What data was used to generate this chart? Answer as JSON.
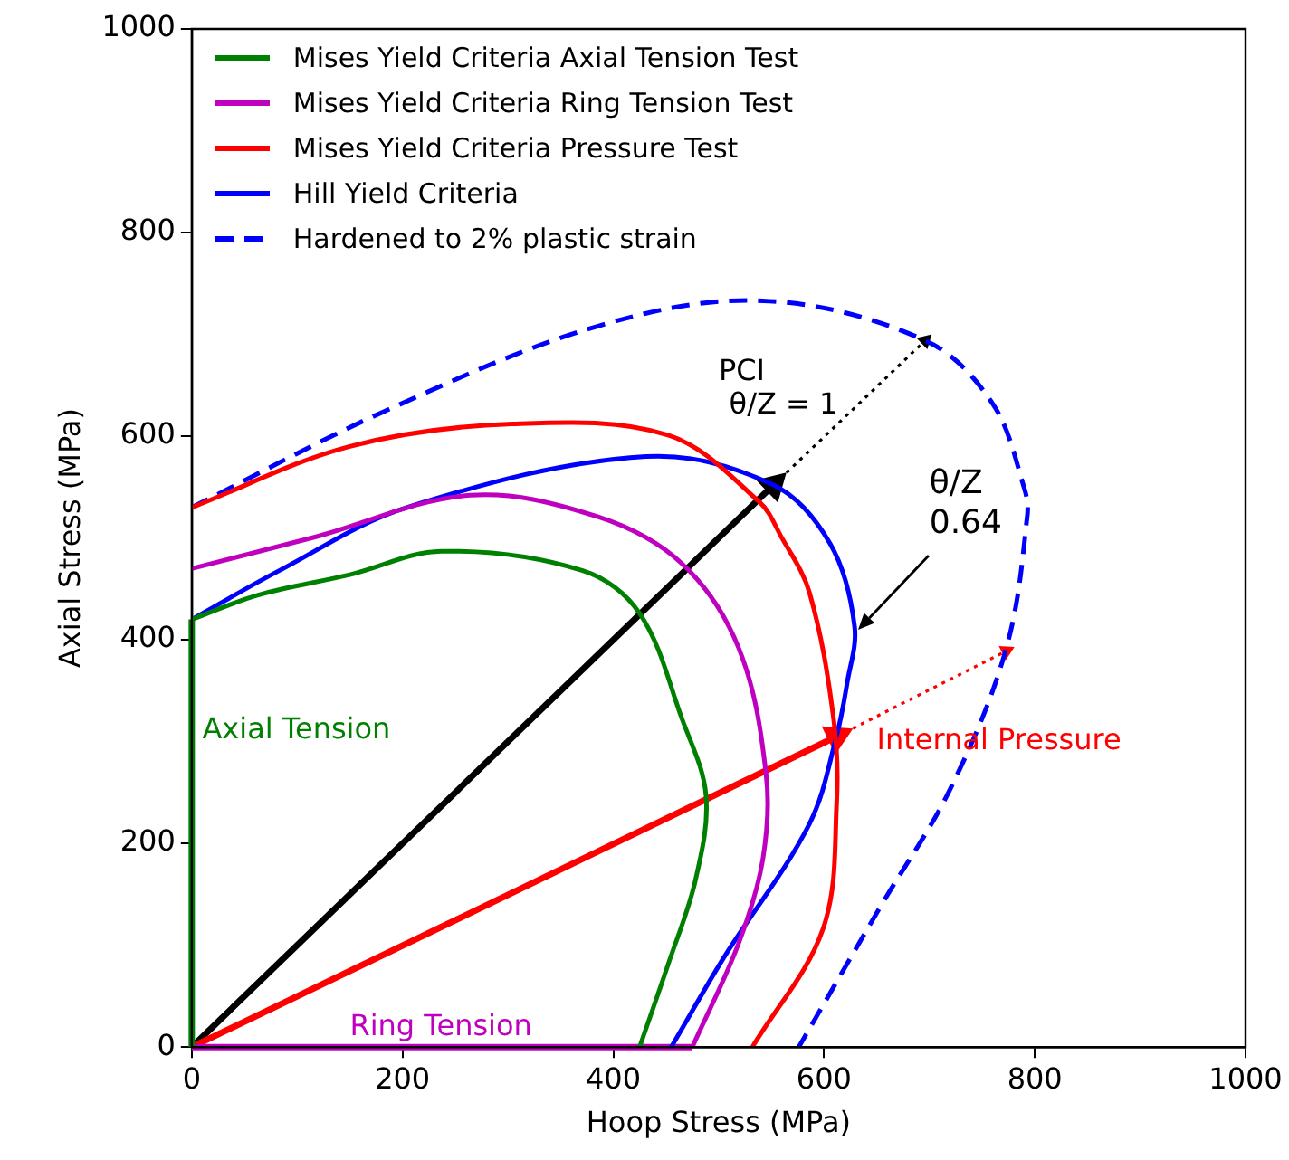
{
  "chart_data": {
    "type": "line",
    "xlabel": "Hoop Stress (MPa)",
    "ylabel": "Axial Stress (MPa)",
    "xlim": [
      0,
      1000
    ],
    "xticks": [
      0,
      200,
      400,
      600,
      800,
      1000
    ],
    "ylim": [
      0,
      1000
    ],
    "yticks": [
      0,
      200,
      400,
      600,
      800,
      1000
    ],
    "grid": false,
    "legend": "top left",
    "marker": "none",
    "line_style": "solid",
    "series": [
      {
        "name": "Mises Yield Criteria Axial Tension Test",
        "color": "#008000",
        "x": [
          0,
          63,
          150,
          237,
          371,
          425,
          465,
          488,
          478,
          452,
          425
        ],
        "values": [
          420,
          444,
          464,
          487,
          468,
          426,
          323,
          247,
          164,
          81,
          0
        ]
      },
      {
        "name": "Mises Yield Criteria Ring Tension Test",
        "color": "#bf00bf",
        "x": [
          0,
          117,
          264,
          385,
          465,
          519,
          545,
          542,
          519,
          475
        ],
        "values": [
          470,
          501,
          542,
          521,
          475,
          392,
          268,
          185,
          102,
          0
        ]
      },
      {
        "name": "Mises Yield Criteria Pressure Test",
        "color": "#ff0000",
        "x": [
          0,
          150,
          304,
          452,
          539,
          559,
          586,
          609,
          612,
          599,
          532
        ],
        "values": [
          530,
          590,
          612,
          601,
          535,
          502,
          447,
          323,
          240,
          116,
          0
        ]
      },
      {
        "name": "Hill Yield Criteria",
        "color": "#0000ff",
        "x": [
          0,
          83,
          204,
          431,
          552,
          606,
          629,
          622,
          612,
          586,
          505,
          455
        ],
        "values": [
          420,
          468,
          530,
          580,
          552,
          494,
          413,
          358,
          306,
          219,
          88,
          0
        ]
      },
      {
        "name": "Hardened to 2% plastic strain",
        "color": "#0000ff",
        "line_style": "dashed",
        "x": [
          0,
          184,
          385,
          542,
          696,
          760,
          790,
          793,
          773,
          720,
          653,
          576
        ],
        "values": [
          530,
          625,
          708,
          733,
          694,
          632,
          549,
          523,
          392,
          254,
          137,
          0
        ]
      },
      {
        "color": "#008000",
        "x": [
          0,
          0
        ],
        "values": [
          0,
          420
        ]
      },
      {
        "color": "#bf00bf",
        "x": [
          0,
          475
        ],
        "values": [
          0,
          0
        ]
      },
      {
        "color": "#ff0000",
        "marker": "triangle",
        "x": [
          0,
          612
        ],
        "values": [
          0,
          305
        ]
      },
      {
        "color": "#000000",
        "marker": "triangle",
        "x": [
          0,
          552
        ],
        "values": [
          0,
          552
        ]
      },
      {
        "color": "#000000",
        "marker": "triangle",
        "line_style": "dotted",
        "x": [
          552,
          696
        ],
        "values": [
          552,
          694
        ]
      },
      {
        "color": "#ff0000",
        "marker": "triangle",
        "line_style": "dotted",
        "x": [
          612,
          773
        ],
        "values": [
          305,
          389
        ]
      }
    ],
    "annotations": [
      "Axial Tension",
      "Ring Tension",
      "Internal Pressure",
      "PCI",
      "θ/Z = 1",
      "θ/Z",
      "0.64"
    ]
  }
}
